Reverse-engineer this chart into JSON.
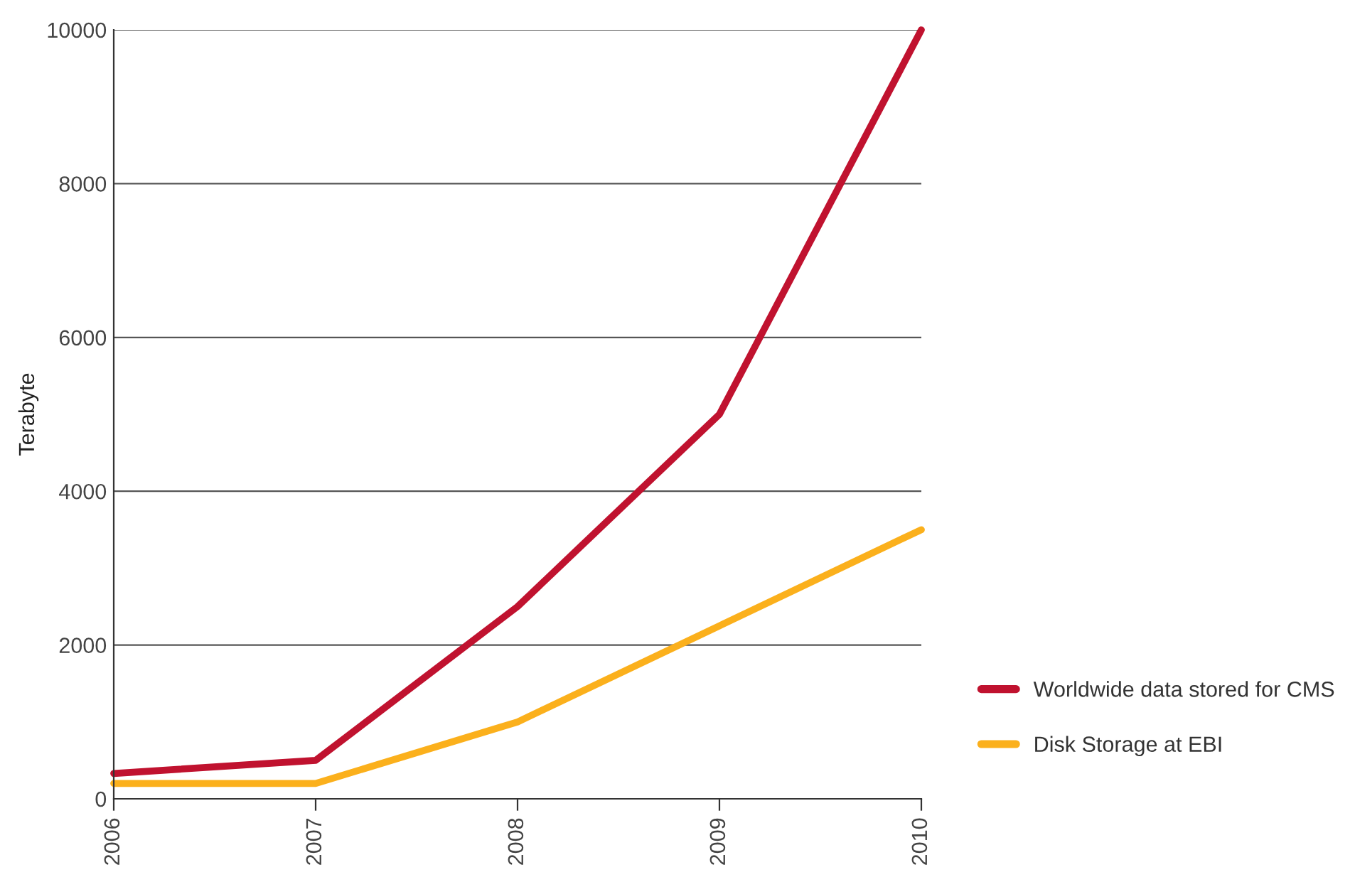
{
  "chart_data": {
    "type": "line",
    "ylabel": "Terabyte",
    "categories": [
      "2006",
      "2007",
      "2008",
      "2009",
      "2010"
    ],
    "series": [
      {
        "name": "Worldwide data stored for CMS",
        "color": "#c0122f",
        "values": [
          330,
          500,
          2500,
          5000,
          10000
        ]
      },
      {
        "name": "Disk Storage at EBI",
        "color": "#fbb01c",
        "values": [
          200,
          200,
          1000,
          2250,
          3500
        ]
      }
    ],
    "ylim": [
      0,
      10000
    ],
    "yticks": [
      0,
      2000,
      4000,
      6000,
      8000,
      10000
    ],
    "grid": "y",
    "legend": "bottom right",
    "line_style": "solid",
    "marker": "none"
  }
}
